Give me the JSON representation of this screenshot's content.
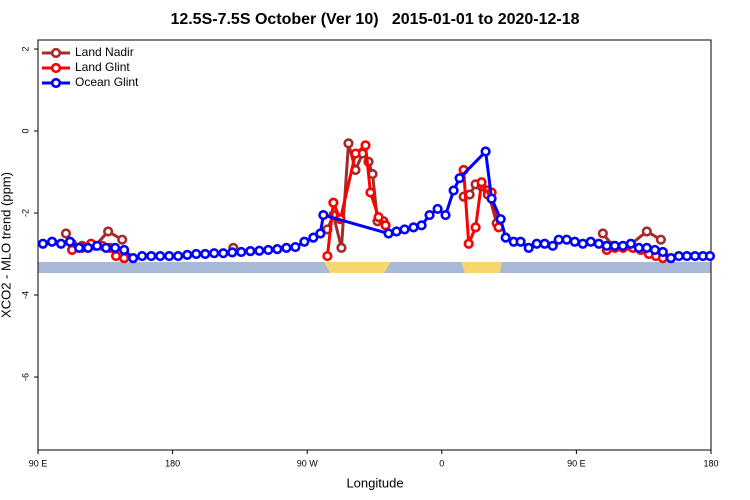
{
  "chart_data": {
    "type": "line",
    "title": "12.5S-7.5S October (Ver 10)   2015-01-01 to 2020-12-18",
    "x_label": "Longitude",
    "y_label": "XCO2 - MLO trend (ppm)",
    "xlim": [
      90,
      540
    ],
    "ylim": [
      -7.78,
      2.22
    ],
    "xticks": [
      {
        "value": 90,
        "label": "90 E"
      },
      180,
      {
        "value": 270,
        "label": "90 W"
      },
      {
        "value": 360,
        "label": "0"
      },
      {
        "value": 450,
        "label": "90 E"
      },
      {
        "value": 540,
        "label": "180"
      }
    ],
    "yticks": [
      2,
      0,
      -2,
      -4,
      -6
    ],
    "legend_position": "top-left",
    "series": [
      {
        "name": "Land Nadir",
        "color": "#a52a2a",
        "x": [
          108.7,
          112.8,
          119.5,
          128.2,
          136.9,
          146.3,
          null,
          220.6,
          null,
          283.5,
          287.5,
          292.9,
          297.6,
          302.3,
          307,
          311,
          313.7,
          317,
          321,
          null,
          374.6,
          378.6,
          382.6,
          386.6,
          390.7,
          396.7,
          null,
          467.7,
          474.4,
          485.1,
          497.1,
          506.5
        ],
        "values": [
          -2.5,
          -2.75,
          -2.8,
          -2.8,
          -2.45,
          -2.65,
          null,
          -2.85,
          null,
          -2.4,
          -2.05,
          -2.85,
          -0.3,
          -0.95,
          -0.55,
          -0.75,
          -1.05,
          -2.2,
          -2.2,
          null,
          -1.6,
          -1.55,
          -1.3,
          -1.35,
          -1.45,
          -2.25,
          null,
          -2.5,
          -2.8,
          -2.8,
          -2.45,
          -2.65
        ]
      },
      {
        "name": "Land Glint",
        "color": "#ff0000",
        "x": [
          112.8,
          119.5,
          125.5,
          132.9,
          138.2,
          142.2,
          147.6,
          null,
          283.5,
          287.5,
          292.2,
          302.3,
          309,
          312.3,
          317.7,
          322.4,
          null,
          374.6,
          378,
          382.6,
          386.6,
          390.7,
          393.3,
          398,
          null,
          470.3,
          475.7,
          481.1,
          487.8,
          493.1,
          498.5,
          503.2,
          507.8
        ],
        "values": [
          -2.9,
          -2.85,
          -2.75,
          -2.8,
          -2.85,
          -3.05,
          -3.1,
          null,
          -3.05,
          -1.75,
          -2.15,
          -0.55,
          -0.35,
          -1.5,
          -2.1,
          -2.3,
          null,
          -0.95,
          -2.75,
          -2.35,
          -1.25,
          -1.55,
          -1.5,
          -2.35,
          null,
          -2.9,
          -2.85,
          -2.85,
          -2.85,
          -2.9,
          -3.0,
          -3.05,
          -3.1
        ]
      },
      {
        "name": "Ocean Glint",
        "color": "#0000ff",
        "x": [
          93.3,
          99.4,
          105.4,
          111.4,
          117.5,
          123.5,
          129.5,
          135.5,
          141.6,
          147.6,
          153.6,
          159.6,
          165.7,
          171.7,
          177.7,
          183.7,
          189.8,
          195.8,
          201.8,
          207.8,
          213.9,
          219.9,
          225.9,
          232,
          238,
          244,
          250,
          256.1,
          262.1,
          268.1,
          274.1,
          278.8,
          280.8,
          324.4,
          329.7,
          335.1,
          341.1,
          346.5,
          351.8,
          357.2,
          362.5,
          367.9,
          371.9,
          389.3,
          393.3,
          399.4,
          402.7,
          408.1,
          412.7,
          418.1,
          423.5,
          428.8,
          434.2,
          438.2,
          443.5,
          448.9,
          454.3,
          459.6,
          465,
          470.3,
          475.7,
          481.1,
          486.4,
          491.8,
          497.1,
          502.5,
          507.8,
          513.2,
          518.5,
          523.9,
          529.3,
          534.6,
          539.3
        ],
        "values": [
          -2.75,
          -2.7,
          -2.75,
          -2.7,
          -2.85,
          -2.85,
          -2.8,
          -2.85,
          -2.85,
          -2.9,
          -3.1,
          -3.05,
          -3.05,
          -3.05,
          -3.05,
          -3.05,
          -3.02,
          -3.0,
          -3.0,
          -2.98,
          -2.98,
          -2.96,
          -2.95,
          -2.93,
          -2.92,
          -2.9,
          -2.88,
          -2.85,
          -2.83,
          -2.7,
          -2.6,
          -2.5,
          -2.05,
          -2.5,
          -2.45,
          -2.4,
          -2.35,
          -2.3,
          -2.05,
          -1.9,
          -2.05,
          -1.45,
          -1.15,
          -0.5,
          -1.65,
          -2.15,
          -2.6,
          -2.7,
          -2.7,
          -2.85,
          -2.75,
          -2.75,
          -2.8,
          -2.65,
          -2.65,
          -2.7,
          -2.75,
          -2.7,
          -2.75,
          -2.8,
          -2.8,
          -2.8,
          -2.75,
          -2.85,
          -2.85,
          -2.9,
          -2.95,
          -3.1,
          -3.05,
          -3.05,
          -3.05,
          -3.05,
          -3.05
        ]
      }
    ]
  }
}
